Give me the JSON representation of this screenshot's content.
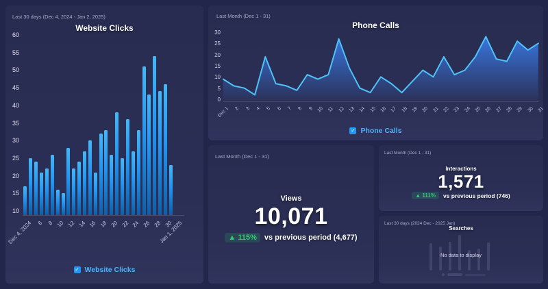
{
  "icons": {
    "check": "✓",
    "up_arrow": "▲"
  },
  "colors": {
    "background": "#22264a",
    "panel": "#2a2e52",
    "bar_main": "#2196f3",
    "line": "#4fc3f7",
    "area_fill": "#3b82f6",
    "legend_text": "#4fb3f5",
    "checkbox_blue": "#2196f3",
    "positive_green": "#2ecc71",
    "muted_text": "#a6abca"
  },
  "panels": {
    "website_clicks": {
      "period": "Last 30 days (Dec 4, 2024 - Jan 2, 2025)",
      "title": "Website Clicks",
      "legend_label": "Website Clicks"
    },
    "phone_calls": {
      "period": "Last Month (Dec 1 - 31)",
      "title": "Phone Calls",
      "legend_label": "Phone Calls"
    },
    "views": {
      "period": "Last Month (Dec 1 - 31)",
      "title": "Views",
      "value": "10,071",
      "delta": "▲ 115%",
      "comparison": "vs previous period (4,677)"
    },
    "interactions": {
      "period": "Last Month (Dec 1 - 31)",
      "title": "Interactions",
      "value": "1,571",
      "delta": "▲ 111%",
      "comparison": "vs previous period (746)"
    },
    "searches": {
      "period": "Last 30 days (2024 Dec - 2025 Jan)",
      "title": "Searches",
      "empty_message": "No data to display"
    }
  },
  "chart_data": [
    {
      "name": "website_clicks",
      "type": "bar",
      "title": "Website Clicks",
      "categories": [
        "Dec 4",
        "Dec 5",
        "Dec 6",
        "Dec 7",
        "Dec 8",
        "Dec 9",
        "Dec 10",
        "Dec 11",
        "Dec 12",
        "Dec 13",
        "Dec 14",
        "Dec 15",
        "Dec 16",
        "Dec 17",
        "Dec 18",
        "Dec 19",
        "Dec 20",
        "Dec 21",
        "Dec 22",
        "Dec 23",
        "Dec 24",
        "Dec 25",
        "Dec 26",
        "Dec 27",
        "Dec 28",
        "Dec 29",
        "Dec 30",
        "Dec 31"
      ],
      "values": [
        17,
        25,
        24,
        21,
        22,
        26,
        16,
        15,
        28,
        22,
        24,
        27,
        30,
        21,
        32,
        33,
        26,
        38,
        25,
        36,
        27,
        33,
        51,
        43,
        54,
        44,
        46,
        23
      ],
      "x_tick_labels": [
        "Dec 4, 2024",
        "6",
        "8",
        "10",
        "12",
        "14",
        "16",
        "18",
        "20",
        "22",
        "24",
        "26",
        "28",
        "30",
        "Jan 1, 2025"
      ],
      "y_ticks": [
        10,
        15,
        20,
        25,
        30,
        35,
        40,
        45,
        50,
        55,
        60
      ],
      "ylim": [
        9,
        62
      ],
      "x_slots": 30,
      "legend": "Website Clicks",
      "legend_position": "bottom"
    },
    {
      "name": "phone_calls",
      "type": "area",
      "title": "Phone Calls",
      "categories": [
        "Dec 1",
        "Dec 2",
        "Dec 3",
        "Dec 4",
        "Dec 5",
        "Dec 6",
        "Dec 7",
        "Dec 8",
        "Dec 9",
        "Dec 10",
        "Dec 11",
        "Dec 12",
        "Dec 13",
        "Dec 14",
        "Dec 15",
        "Dec 16",
        "Dec 17",
        "Dec 18",
        "Dec 19",
        "Dec 20",
        "Dec 21",
        "Dec 22",
        "Dec 23",
        "Dec 24",
        "Dec 25",
        "Dec 26",
        "Dec 27",
        "Dec 28",
        "Dec 29",
        "Dec 30",
        "Dec 31"
      ],
      "values": [
        9,
        6,
        5,
        2,
        19,
        7,
        6,
        4,
        11,
        9,
        11,
        27,
        14,
        5,
        3,
        10,
        7,
        3,
        8,
        13,
        10,
        19,
        11,
        13,
        19,
        28,
        18,
        17,
        26,
        22,
        25
      ],
      "x_tick_labels": [
        "Dec 1",
        "2",
        "3",
        "4",
        "5",
        "6",
        "7",
        "8",
        "9",
        "10",
        "11",
        "12",
        "13",
        "14",
        "15",
        "16",
        "17",
        "18",
        "19",
        "20",
        "21",
        "22",
        "23",
        "24",
        "25",
        "26",
        "27",
        "28",
        "29",
        "30",
        "31"
      ],
      "y_ticks": [
        0,
        5,
        10,
        15,
        20,
        25,
        30
      ],
      "ylim": [
        0,
        32
      ],
      "legend": "Phone Calls",
      "legend_position": "bottom"
    },
    {
      "name": "views",
      "type": "kpi",
      "title": "Views",
      "value": 10071,
      "delta_pct": 115,
      "previous_value": 4677
    },
    {
      "name": "interactions",
      "type": "kpi",
      "title": "Interactions",
      "value": 1571,
      "delta_pct": 111,
      "previous_value": 746
    },
    {
      "name": "searches",
      "type": "bar",
      "title": "Searches",
      "values": [],
      "empty": true,
      "empty_message": "No data to display",
      "placeholder_bar_heights": [
        40,
        35,
        42,
        52,
        30,
        32,
        41
      ]
    }
  ]
}
